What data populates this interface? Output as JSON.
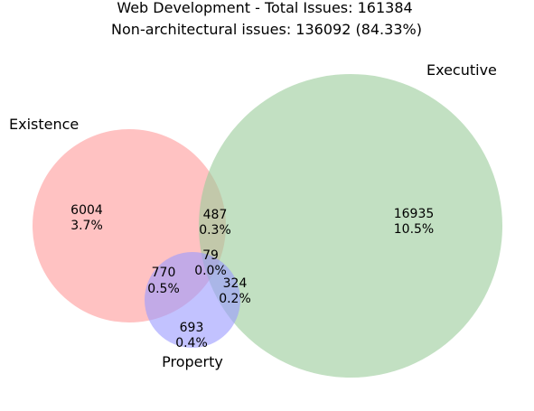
{
  "chart_data": {
    "type": "venn",
    "title": "Web Development - Total Issues: 161384",
    "subtitle": "Non-architectural issues: 136092 (84.33%)",
    "sets": [
      {
        "name": "Existence",
        "color": "#ff9999"
      },
      {
        "name": "Executive",
        "color": "#99cc99"
      },
      {
        "name": "Property",
        "color": "#9999ff"
      }
    ],
    "regions": [
      {
        "sets": [
          "Existence"
        ],
        "count": "6004",
        "percent": "3.7%"
      },
      {
        "sets": [
          "Executive"
        ],
        "count": "16935",
        "percent": "10.5%"
      },
      {
        "sets": [
          "Existence",
          "Executive"
        ],
        "count": "487",
        "percent": "0.3%"
      },
      {
        "sets": [
          "Existence",
          "Property"
        ],
        "count": "770",
        "percent": "0.5%"
      },
      {
        "sets": [
          "Existence",
          "Executive",
          "Property"
        ],
        "count": "79",
        "percent": "0.0%"
      },
      {
        "sets": [
          "Executive",
          "Property"
        ],
        "count": "324",
        "percent": "0.2%"
      },
      {
        "sets": [
          "Property"
        ],
        "count": "693",
        "percent": "0.4%"
      }
    ]
  }
}
